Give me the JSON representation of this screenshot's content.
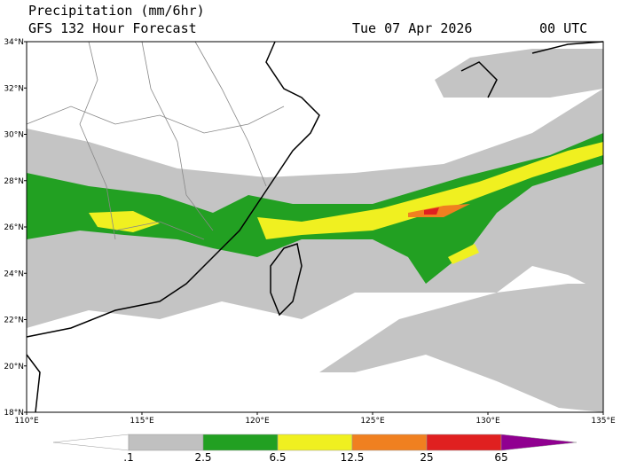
{
  "header": {
    "title": "Precipitation (mm/6hr)",
    "subtitle": "GFS 132 Hour Forecast",
    "date": "Tue 07 Apr 2026",
    "time": "00 UTC"
  },
  "map": {
    "lat_labels": [
      "34°N",
      "32°N",
      "30°N",
      "28°N",
      "26°N",
      "24°N",
      "22°N",
      "20°N",
      "18°N"
    ],
    "lon_labels": [
      "110°E",
      "115°E",
      "120°E",
      "125°E",
      "130°E",
      "135°E"
    ]
  },
  "legend": {
    "labels": [
      ".1",
      "2.5",
      "6.5",
      "12.5",
      "25",
      "65"
    ],
    "colors": [
      "#ffffff",
      "#c0c0c0",
      "#22a022",
      "#f0f020",
      "#f08020",
      "#e02020",
      "#900090"
    ]
  }
}
